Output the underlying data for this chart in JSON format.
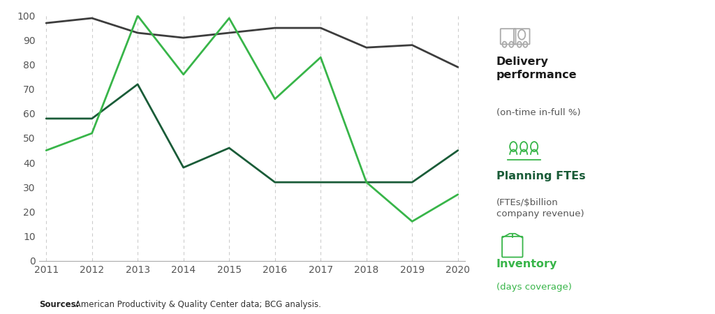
{
  "years": [
    2011,
    2012,
    2013,
    2014,
    2015,
    2016,
    2017,
    2018,
    2019,
    2020
  ],
  "delivery_performance": [
    97,
    99,
    93,
    91,
    93,
    95,
    95,
    87,
    88,
    79
  ],
  "planning_ftes": [
    58,
    58,
    72,
    38,
    46,
    32,
    32,
    32,
    32,
    45
  ],
  "inventory": [
    45,
    52,
    100,
    76,
    99,
    66,
    83,
    32,
    16,
    27
  ],
  "delivery_color": "#3d3d3d",
  "planning_color": "#1a5c38",
  "inventory_color": "#38b549",
  "background_color": "#ffffff",
  "grid_color": "#cccccc",
  "source_bold": "Sources:",
  "source_rest": " American Productivity & Quality Center data; BCG analysis.",
  "ylim_min": 0,
  "ylim_max": 100,
  "yticks": [
    0,
    10,
    20,
    30,
    40,
    50,
    60,
    70,
    80,
    90,
    100
  ],
  "legend_delivery_title": "Delivery\nperformance",
  "legend_delivery_sub": "(on-time in-full %)",
  "legend_planning_title": "Planning FTEs",
  "legend_planning_sub": "(FTEs/$billion\ncompany revenue)",
  "legend_inventory_title": "Inventory",
  "legend_inventory_sub": "(days coverage)",
  "icon_color_gray": "#aaaaaa",
  "icon_color_green": "#38b549",
  "title_color_dark": "#1a1a1a",
  "title_color_darkgreen": "#1a5c38",
  "sub_color_dark": "#555555",
  "sub_color_green": "#38b549"
}
